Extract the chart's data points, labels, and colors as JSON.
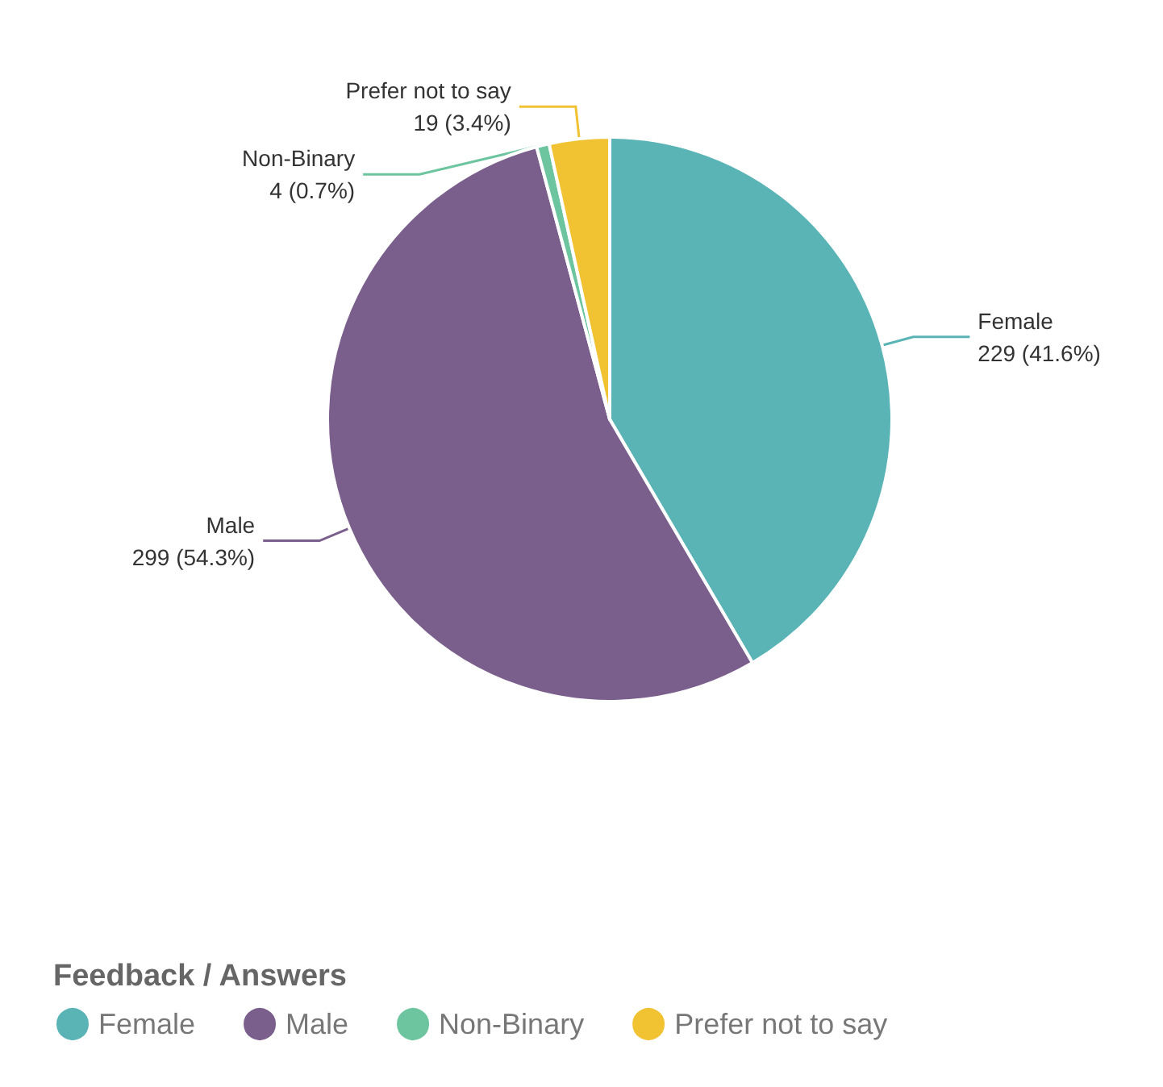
{
  "chart_data": {
    "type": "pie",
    "legend_title": "Feedback / Answers",
    "legend": "bottom left",
    "categories": [
      "Female",
      "Male",
      "Non-Binary",
      "Prefer not to say"
    ],
    "values": [
      229,
      299,
      4,
      19
    ],
    "value_labels": [
      "229 (41.6%)",
      "299 (54.3%)",
      "4 (0.7%)",
      "19 (3.4%)"
    ],
    "colors": [
      "#5ab4b6",
      "#7a5e8c",
      "#6cc59e",
      "#f1c232"
    ]
  }
}
